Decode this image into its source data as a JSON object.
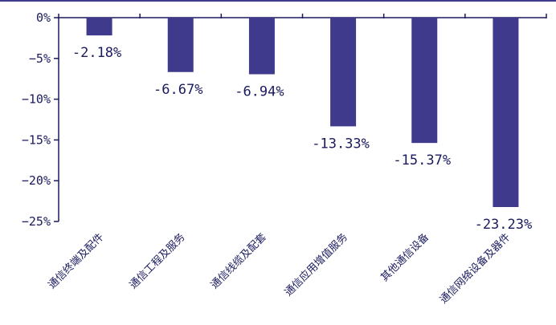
{
  "chart_data": {
    "type": "bar",
    "title": "",
    "xlabel": "",
    "ylabel": "",
    "categories": [
      "通信终端及配件",
      "通信工程及服务",
      "通信线缆及配套",
      "通信应用增值服务",
      "其他通信设备",
      "通信网络设备及器件"
    ],
    "values": [
      -2.18,
      -6.67,
      -6.94,
      -13.33,
      -15.37,
      -23.23
    ],
    "data_labels": [
      "-2.18%",
      "-6.67%",
      "-6.94%",
      "-13.33%",
      "-15.37%",
      "-23.23%"
    ],
    "yticks": [
      0,
      -5,
      -10,
      -15,
      -20,
      -25
    ],
    "ytick_labels": [
      "0%",
      "−5%",
      "−10%",
      "−15%",
      "−20%",
      "−25%"
    ],
    "ylim": [
      -25,
      0
    ],
    "grid": false,
    "legend": "none",
    "bar_color": "#3f3a8c",
    "axis_color": "#1a1a5e"
  }
}
